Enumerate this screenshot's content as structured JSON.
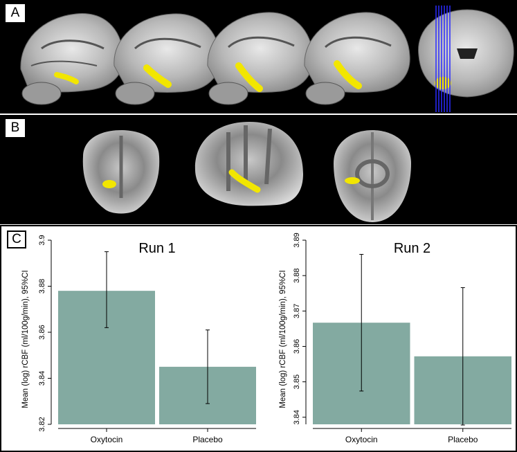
{
  "panels": {
    "a": {
      "label": "A"
    },
    "b": {
      "label": "B"
    },
    "c": {
      "label": "C"
    }
  },
  "colors": {
    "bar": "#83aaa1",
    "highlight": "#f2e600",
    "overlay_lines": "#2a2aff"
  },
  "chart_data": [
    {
      "type": "bar",
      "title": "Run 1",
      "ylabel": "Mean (log) rCBF (ml/100g/min), 95%CI",
      "xlabel": "",
      "categories": [
        "Oxytocin",
        "Placebo"
      ],
      "values": [
        3.878,
        3.845
      ],
      "ci_low": [
        3.862,
        3.829
      ],
      "ci_high": [
        3.895,
        3.861
      ],
      "ylim": [
        3.82,
        3.9
      ],
      "yticks": [
        "3.82",
        "3.84",
        "3.86",
        "3.88",
        "3.9"
      ],
      "ytick_values": [
        3.82,
        3.84,
        3.86,
        3.88,
        3.9
      ]
    },
    {
      "type": "bar",
      "title": "Run 2",
      "ylabel": "Mean (log) rCBF (ml/100g/min), 95%CI",
      "xlabel": "",
      "categories": [
        "Oxytocin",
        "Placebo"
      ],
      "values": [
        3.8667,
        3.8572
      ],
      "ci_low": [
        3.8474,
        3.8378
      ],
      "ci_high": [
        3.886,
        3.8766
      ],
      "ylim": [
        3.838,
        3.89
      ],
      "yticks": [
        "3.84",
        "3.85",
        "3.86",
        "3.87",
        "3.88",
        "3.89"
      ],
      "ytick_values": [
        3.84,
        3.85,
        3.86,
        3.87,
        3.88,
        3.89
      ]
    }
  ]
}
